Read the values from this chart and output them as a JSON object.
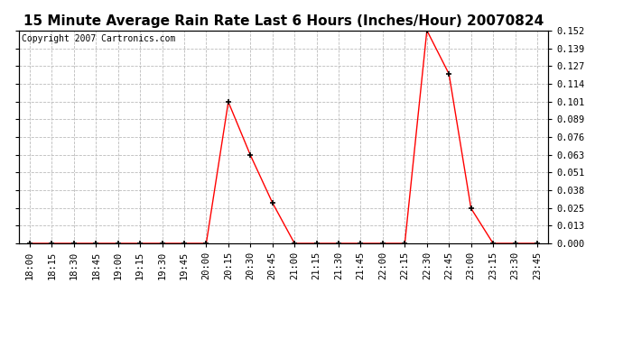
{
  "title": "15 Minute Average Rain Rate Last 6 Hours (Inches/Hour) 20070824",
  "copyright": "Copyright 2007 Cartronics.com",
  "x_labels": [
    "18:00",
    "18:15",
    "18:30",
    "18:45",
    "19:00",
    "19:15",
    "19:30",
    "19:45",
    "20:00",
    "20:15",
    "20:30",
    "20:45",
    "21:00",
    "21:15",
    "21:30",
    "21:45",
    "22:00",
    "22:15",
    "22:30",
    "22:45",
    "23:00",
    "23:15",
    "23:30",
    "23:45"
  ],
  "y_values": [
    0.0,
    0.0,
    0.0,
    0.0,
    0.0,
    0.0,
    0.0,
    0.0,
    0.0,
    0.101,
    0.063,
    0.029,
    0.0,
    0.0,
    0.0,
    0.0,
    0.0,
    0.0,
    0.152,
    0.121,
    0.025,
    0.0,
    0.0,
    0.0
  ],
  "line_color": "red",
  "marker": "+",
  "marker_color": "black",
  "marker_size": 5,
  "marker_linewidth": 1.2,
  "background_color": "#ffffff",
  "grid_color": "#bbbbbb",
  "grid_linestyle": "--",
  "y_ticks": [
    0.0,
    0.013,
    0.025,
    0.038,
    0.051,
    0.063,
    0.076,
    0.089,
    0.101,
    0.114,
    0.127,
    0.139,
    0.152
  ],
  "ylim": [
    0.0,
    0.152
  ],
  "title_fontsize": 11,
  "axis_fontsize": 7.5,
  "copyright_fontsize": 7
}
